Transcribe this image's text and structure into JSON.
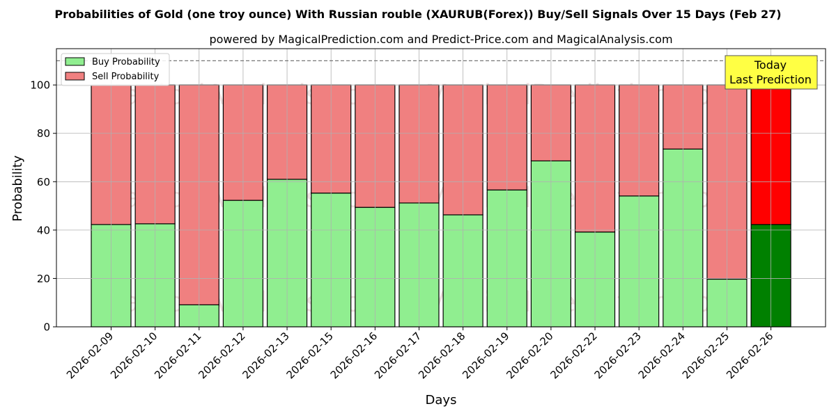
{
  "chart_data": {
    "type": "bar",
    "stacked": true,
    "title": "Probabilities of Gold (one troy ounce) With Russian rouble (XAURUB(Forex)) Buy/Sell Signals Over 15 Days (Feb 27)",
    "subtitle": "powered by MagicalPrediction.com and Predict-Price.com and MagicalAnalysis.com",
    "xlabel": "Days",
    "ylabel": "Probability",
    "ylim": [
      0,
      115
    ],
    "yticks": [
      0,
      20,
      40,
      60,
      80,
      100
    ],
    "reference_line": 110,
    "grid": true,
    "legend_position": "top-left",
    "categories": [
      "2026-02-09",
      "2026-02-10",
      "2026-02-11",
      "2026-02-12",
      "2026-02-13",
      "2026-02-15",
      "2026-02-16",
      "2026-02-17",
      "2026-02-18",
      "2026-02-19",
      "2026-02-20",
      "2026-02-22",
      "2026-02-23",
      "2026-02-24",
      "2026-02-25",
      "2026-02-26"
    ],
    "series": [
      {
        "name": "Buy Probability",
        "color": "#90ee90",
        "highlight_color": "#008000",
        "values": [
          42.3,
          42.6,
          9.1,
          52.3,
          61.0,
          55.3,
          49.4,
          51.2,
          46.3,
          56.6,
          68.6,
          39.2,
          54.1,
          73.5,
          19.7,
          42.3
        ]
      },
      {
        "name": "Sell Probability",
        "color": "#f08080",
        "highlight_color": "#ff0000",
        "values": [
          57.7,
          57.4,
          90.9,
          47.7,
          39.0,
          44.7,
          50.6,
          48.8,
          53.7,
          43.4,
          31.4,
          60.8,
          45.9,
          26.5,
          80.3,
          57.7
        ]
      }
    ],
    "highlight_index": 15,
    "annotation": {
      "line1": "Today",
      "line2": "Last Prediction",
      "color": "#ffff44"
    },
    "watermarks": [
      "MagicalAnalysis.com",
      "MagicalPrediction.com"
    ]
  }
}
